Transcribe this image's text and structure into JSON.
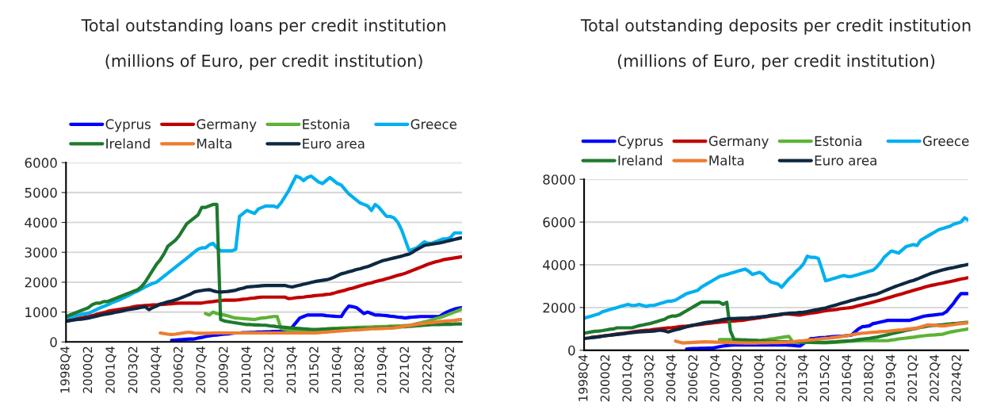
{
  "chart_data": [
    {
      "type": "line",
      "title": "Total outstanding loans per credit institution",
      "subtitle": "(millions of Euro, per credit institution)",
      "categories": [
        "1998Q4",
        null,
        null,
        null,
        null,
        null,
        "2000Q2",
        null,
        null,
        null,
        null,
        null,
        "2001Q4",
        null,
        null,
        null,
        null,
        null,
        "2003Q2",
        null,
        null,
        null,
        null,
        null,
        "2004Q4",
        null,
        null,
        null,
        null,
        null,
        "2006Q2",
        null,
        null,
        null,
        null,
        null,
        "2007Q4",
        null,
        null,
        null,
        null,
        null,
        "2009Q2",
        null,
        null,
        null,
        null,
        null,
        "2010Q4",
        null,
        null,
        null,
        null,
        null,
        "2012Q2",
        null,
        null,
        null,
        null,
        null,
        "2013Q4",
        null,
        null,
        null,
        null,
        null,
        "2015Q2",
        null,
        null,
        null,
        null,
        null,
        "2016Q4",
        null,
        null,
        null,
        null,
        null,
        "2018Q2",
        null,
        null,
        null,
        null,
        null,
        "2019Q4",
        null,
        null,
        null,
        null,
        null,
        "2021Q2",
        null,
        null,
        null,
        null,
        null,
        "2022Q4",
        null,
        null,
        null,
        null,
        null,
        "2024Q2",
        null,
        null,
        null
      ],
      "ylim": [
        0,
        6000
      ],
      "yticks": [
        0,
        1000,
        2000,
        3000,
        4000,
        5000,
        6000
      ],
      "grid": "y",
      "legend": "top",
      "series": [
        {
          "name": "Cyprus",
          "color": "#0000ff",
          "values": [
            null,
            null,
            null,
            null,
            null,
            null,
            null,
            null,
            null,
            null,
            null,
            null,
            null,
            null,
            null,
            null,
            null,
            null,
            null,
            null,
            null,
            null,
            null,
            null,
            null,
            null,
            null,
            null,
            50,
            60,
            70,
            80,
            90,
            100,
            100,
            130,
            150,
            180,
            200,
            220,
            230,
            250,
            260,
            270,
            290,
            300,
            300,
            310,
            310,
            320,
            320,
            330,
            330,
            340,
            340,
            350,
            350,
            350,
            350,
            350,
            500,
            650,
            800,
            850,
            900,
            900,
            900,
            900,
            900,
            880,
            870,
            860,
            850,
            850,
            1050,
            1200,
            1180,
            1150,
            1050,
            950,
            1000,
            950,
            900,
            900,
            890,
            880,
            860,
            850,
            830,
            820,
            800,
            820,
            830,
            840,
            850,
            850,
            850,
            850,
            850,
            850,
            930,
            1000,
            1050,
            1100,
            1130,
            1150
          ]
        },
        {
          "name": "Germany",
          "color": "#c00000",
          "values": [
            700,
            730,
            750,
            780,
            800,
            830,
            850,
            880,
            920,
            950,
            980,
            1020,
            1050,
            1070,
            1090,
            1110,
            1130,
            1150,
            1180,
            1200,
            1210,
            1220,
            1230,
            1240,
            1240,
            1250,
            1260,
            1270,
            1280,
            1290,
            1300,
            1300,
            1300,
            1300,
            1300,
            1300,
            1300,
            1320,
            1340,
            1350,
            1370,
            1380,
            1400,
            1400,
            1400,
            1400,
            1410,
            1430,
            1440,
            1460,
            1470,
            1490,
            1500,
            1500,
            1500,
            1500,
            1500,
            1500,
            1500,
            1450,
            1460,
            1480,
            1490,
            1500,
            1520,
            1530,
            1550,
            1560,
            1570,
            1590,
            1600,
            1630,
            1670,
            1700,
            1730,
            1770,
            1800,
            1840,
            1880,
            1910,
            1950,
            1980,
            2020,
            2050,
            2080,
            2120,
            2150,
            2190,
            2230,
            2260,
            2300,
            2350,
            2400,
            2450,
            2500,
            2550,
            2600,
            2640,
            2680,
            2710,
            2750,
            2770,
            2790,
            2810,
            2830,
            2850
          ]
        },
        {
          "name": "Estonia",
          "color": "#5cb335",
          "values": [
            null,
            null,
            null,
            null,
            null,
            null,
            null,
            null,
            null,
            null,
            null,
            null,
            null,
            null,
            null,
            null,
            null,
            null,
            null,
            null,
            null,
            null,
            null,
            null,
            null,
            null,
            null,
            null,
            null,
            null,
            null,
            null,
            null,
            null,
            null,
            null,
            null,
            950,
            900,
            1000,
            950,
            930,
            900,
            870,
            830,
            800,
            790,
            780,
            770,
            760,
            750,
            780,
            800,
            810,
            830,
            850,
            850,
            450,
            420,
            400,
            400,
            400,
            400,
            400,
            400,
            400,
            400,
            410,
            420,
            440,
            450,
            460,
            460,
            470,
            470,
            480,
            480,
            490,
            490,
            500,
            500,
            500,
            510,
            510,
            520,
            520,
            530,
            530,
            540,
            540,
            550,
            550,
            580,
            610,
            640,
            670,
            700,
            740,
            780,
            810,
            850,
            900,
            950,
            1000,
            1050,
            1100
          ]
        },
        {
          "name": "Greece",
          "color": "#00b0f0",
          "values": [
            800,
            830,
            860,
            890,
            920,
            940,
            960,
            1020,
            1080,
            1140,
            1190,
            1240,
            1300,
            1350,
            1400,
            1460,
            1520,
            1580,
            1650,
            1700,
            1770,
            1840,
            1900,
            1960,
            2000,
            2100,
            2200,
            2300,
            2400,
            2500,
            2600,
            2700,
            2800,
            2900,
            3000,
            3100,
            3150,
            3150,
            3250,
            3300,
            3150,
            3050,
            3050,
            3050,
            3050,
            3100,
            4200,
            4300,
            4400,
            4350,
            4300,
            4450,
            4500,
            4550,
            4550,
            4550,
            4500,
            4650,
            4850,
            5050,
            5300,
            5550,
            5500,
            5400,
            5500,
            5550,
            5450,
            5350,
            5300,
            5400,
            5500,
            5400,
            5300,
            5250,
            5100,
            4950,
            4850,
            4750,
            4650,
            4600,
            4550,
            4400,
            4600,
            4500,
            4350,
            4200,
            4200,
            4150,
            4000,
            3750,
            3400,
            3050,
            3100,
            3150,
            3250,
            3350,
            3300,
            3300,
            3350,
            3400,
            3450,
            3450,
            3500,
            3650,
            3650,
            3650
          ]
        },
        {
          "name": "Ireland",
          "color": "#1e7a2e",
          "values": [
            850,
            900,
            950,
            1000,
            1050,
            1100,
            1150,
            1250,
            1300,
            1300,
            1350,
            1350,
            1400,
            1450,
            1500,
            1550,
            1600,
            1650,
            1700,
            1750,
            1850,
            2000,
            2200,
            2400,
            2600,
            2750,
            2950,
            3200,
            3300,
            3400,
            3550,
            3750,
            3950,
            4050,
            4150,
            4250,
            4500,
            4500,
            4550,
            4600,
            4600,
            750,
            700,
            680,
            660,
            640,
            620,
            600,
            580,
            580,
            570,
            570,
            560,
            560,
            540,
            530,
            510,
            500,
            490,
            480,
            470,
            460,
            450,
            440,
            430,
            420,
            420,
            420,
            430,
            430,
            430,
            430,
            440,
            440,
            440,
            440,
            450,
            450,
            450,
            450,
            450,
            460,
            460,
            470,
            470,
            480,
            490,
            490,
            500,
            510,
            510,
            520,
            530,
            540,
            550,
            560,
            570,
            580,
            580,
            580,
            590,
            590,
            590,
            600,
            600,
            600
          ]
        },
        {
          "name": "Malta",
          "color": "#ed7d31",
          "values": [
            null,
            null,
            null,
            null,
            null,
            null,
            null,
            null,
            null,
            null,
            null,
            null,
            null,
            null,
            null,
            null,
            null,
            null,
            null,
            null,
            null,
            null,
            null,
            null,
            null,
            300,
            280,
            260,
            250,
            260,
            280,
            300,
            320,
            320,
            300,
            290,
            290,
            290,
            290,
            300,
            300,
            300,
            300,
            300,
            300,
            300,
            300,
            300,
            300,
            300,
            300,
            300,
            300,
            300,
            300,
            300,
            300,
            300,
            300,
            300,
            300,
            300,
            300,
            300,
            300,
            300,
            300,
            310,
            320,
            330,
            340,
            350,
            360,
            370,
            380,
            390,
            400,
            400,
            410,
            420,
            430,
            440,
            440,
            450,
            450,
            460,
            460,
            470,
            490,
            510,
            530,
            550,
            570,
            590,
            610,
            620,
            640,
            650,
            660,
            680,
            690,
            700,
            710,
            720,
            740,
            750
          ]
        },
        {
          "name": "Euro area",
          "color": "#0e2841",
          "values": [
            700,
            710,
            730,
            750,
            760,
            780,
            800,
            830,
            860,
            890,
            920,
            940,
            960,
            990,
            1010,
            1040,
            1070,
            1090,
            1110,
            1130,
            1160,
            1180,
            1080,
            1150,
            1200,
            1270,
            1300,
            1340,
            1370,
            1410,
            1450,
            1500,
            1550,
            1600,
            1670,
            1700,
            1720,
            1740,
            1750,
            1710,
            1680,
            1670,
            1680,
            1690,
            1710,
            1730,
            1770,
            1800,
            1840,
            1850,
            1860,
            1870,
            1880,
            1890,
            1890,
            1890,
            1890,
            1890,
            1890,
            1860,
            1840,
            1870,
            1900,
            1930,
            1960,
            1990,
            2020,
            2040,
            2060,
            2080,
            2110,
            2160,
            2220,
            2280,
            2310,
            2350,
            2380,
            2420,
            2450,
            2490,
            2520,
            2570,
            2620,
            2670,
            2720,
            2750,
            2780,
            2810,
            2840,
            2870,
            2910,
            2940,
            3010,
            3090,
            3160,
            3230,
            3250,
            3270,
            3290,
            3310,
            3340,
            3370,
            3400,
            3430,
            3460,
            3490
          ]
        }
      ]
    },
    {
      "type": "line",
      "title": "Total outstanding deposits per credit institution",
      "subtitle": "(millions of Euro, per credit institution)",
      "categories": [
        "1998Q4",
        null,
        null,
        null,
        null,
        null,
        "2000Q2",
        null,
        null,
        null,
        null,
        null,
        "2001Q4",
        null,
        null,
        null,
        null,
        null,
        "2003Q2",
        null,
        null,
        null,
        null,
        null,
        "2004Q4",
        null,
        null,
        null,
        null,
        null,
        "2006Q2",
        null,
        null,
        null,
        null,
        null,
        "2007Q4",
        null,
        null,
        null,
        null,
        null,
        "2009Q2",
        null,
        null,
        null,
        null,
        null,
        "2010Q4",
        null,
        null,
        null,
        null,
        null,
        "2012Q2",
        null,
        null,
        null,
        null,
        null,
        "2013Q4",
        null,
        null,
        null,
        null,
        null,
        "2015Q2",
        null,
        null,
        null,
        null,
        null,
        "2016Q4",
        null,
        null,
        null,
        null,
        null,
        "2018Q2",
        null,
        null,
        null,
        null,
        null,
        "2019Q4",
        null,
        null,
        null,
        null,
        null,
        "2021Q2",
        null,
        null,
        null,
        null,
        null,
        "2022Q4",
        null,
        null,
        null,
        null,
        null,
        "2024Q2",
        null,
        null,
        null
      ],
      "ylim": [
        0,
        8000
      ],
      "yticks": [
        0,
        2000,
        4000,
        6000,
        8000
      ],
      "grid": "y",
      "legend": "top",
      "series": [
        {
          "name": "Cyprus",
          "color": "#0000ff",
          "values": [
            null,
            null,
            null,
            null,
            null,
            null,
            null,
            null,
            null,
            null,
            null,
            null,
            null,
            null,
            null,
            null,
            null,
            null,
            null,
            null,
            null,
            null,
            null,
            null,
            null,
            null,
            null,
            null,
            60,
            70,
            80,
            80,
            90,
            90,
            100,
            100,
            130,
            170,
            200,
            220,
            240,
            250,
            250,
            250,
            250,
            250,
            250,
            250,
            250,
            250,
            250,
            250,
            250,
            250,
            250,
            250,
            240,
            230,
            210,
            200,
            320,
            430,
            550,
            560,
            580,
            590,
            600,
            620,
            640,
            650,
            660,
            670,
            690,
            700,
            850,
            1000,
            1100,
            1120,
            1150,
            1250,
            1280,
            1320,
            1360,
            1400,
            1400,
            1400,
            1400,
            1400,
            1400,
            1400,
            1450,
            1500,
            1550,
            1600,
            1620,
            1640,
            1660,
            1680,
            1700,
            1800,
            2000,
            2200,
            2450,
            2650,
            2650,
            2650
          ]
        },
        {
          "name": "Germany",
          "color": "#c00000",
          "values": [
            null,
            null,
            600,
            620,
            640,
            660,
            690,
            710,
            730,
            760,
            780,
            800,
            830,
            850,
            880,
            900,
            920,
            940,
            950,
            970,
            990,
            1010,
            1030,
            1050,
            1060,
            1080,
            1100,
            1120,
            1130,
            1150,
            1170,
            1190,
            1210,
            1240,
            1260,
            1280,
            1300,
            1310,
            1330,
            1340,
            1360,
            1370,
            1390,
            1400,
            1420,
            1450,
            1470,
            1500,
            1520,
            1550,
            1570,
            1600,
            1620,
            1650,
            1670,
            1700,
            1690,
            1680,
            1660,
            1650,
            1680,
            1710,
            1740,
            1760,
            1790,
            1820,
            1850,
            1870,
            1890,
            1910,
            1940,
            1960,
            1980,
            2000,
            2040,
            2090,
            2130,
            2170,
            2210,
            2260,
            2300,
            2350,
            2400,
            2450,
            2500,
            2550,
            2600,
            2650,
            2700,
            2750,
            2800,
            2850,
            2900,
            2950,
            3000,
            3040,
            3070,
            3110,
            3140,
            3180,
            3210,
            3250,
            3290,
            3330,
            3360,
            3400
          ]
        },
        {
          "name": "Estonia",
          "color": "#5cb335",
          "values": [
            null,
            null,
            null,
            null,
            null,
            null,
            null,
            null,
            null,
            null,
            null,
            null,
            null,
            null,
            null,
            null,
            null,
            null,
            null,
            null,
            null,
            null,
            null,
            null,
            null,
            null,
            null,
            null,
            null,
            null,
            null,
            null,
            null,
            null,
            null,
            null,
            null,
            500,
            500,
            500,
            500,
            500,
            490,
            480,
            480,
            470,
            460,
            460,
            450,
            480,
            500,
            530,
            550,
            580,
            600,
            630,
            650,
            400,
            390,
            380,
            380,
            370,
            370,
            360,
            360,
            350,
            350,
            360,
            370,
            380,
            390,
            400,
            410,
            420,
            430,
            440,
            450,
            450,
            450,
            450,
            450,
            450,
            450,
            450,
            480,
            500,
            530,
            550,
            570,
            590,
            610,
            640,
            660,
            680,
            700,
            710,
            720,
            740,
            750,
            800,
            850,
            880,
            910,
            940,
            970,
            1000
          ]
        },
        {
          "name": "Greece",
          "color": "#00b0f0",
          "values": [
            1500,
            1550,
            1600,
            1650,
            1700,
            1800,
            1850,
            1900,
            1950,
            2000,
            2050,
            2100,
            2150,
            2100,
            2100,
            2150,
            2100,
            2050,
            2100,
            2100,
            2150,
            2200,
            2250,
            2300,
            2300,
            2350,
            2450,
            2550,
            2650,
            2700,
            2750,
            2800,
            2950,
            3050,
            3150,
            3250,
            3350,
            3450,
            3500,
            3550,
            3600,
            3650,
            3700,
            3750,
            3800,
            3700,
            3550,
            3600,
            3650,
            3550,
            3350,
            3200,
            3150,
            3100,
            2950,
            3150,
            3350,
            3500,
            3700,
            3850,
            4050,
            4400,
            4350,
            4350,
            4300,
            3800,
            3250,
            3300,
            3350,
            3400,
            3450,
            3500,
            3450,
            3450,
            3500,
            3550,
            3600,
            3650,
            3700,
            3750,
            3900,
            4100,
            4350,
            4500,
            4650,
            4600,
            4550,
            4700,
            4850,
            4900,
            4950,
            4900,
            5150,
            5250,
            5350,
            5450,
            5550,
            5650,
            5700,
            5750,
            5800,
            5900,
            5950,
            6000,
            6200,
            6100
          ]
        },
        {
          "name": "Ireland",
          "color": "#1e7a2e",
          "values": [
            800,
            830,
            860,
            890,
            900,
            920,
            950,
            980,
            1000,
            1050,
            1050,
            1050,
            1050,
            1050,
            1100,
            1150,
            1180,
            1220,
            1250,
            1300,
            1350,
            1400,
            1450,
            1550,
            1600,
            1600,
            1650,
            1750,
            1850,
            1950,
            2050,
            2150,
            2250,
            2250,
            2250,
            2250,
            2250,
            2250,
            2150,
            2250,
            900,
            500,
            490,
            480,
            480,
            470,
            460,
            460,
            450,
            440,
            430,
            420,
            420,
            410,
            400,
            400,
            400,
            390,
            390,
            390,
            380,
            380,
            380,
            370,
            370,
            370,
            370,
            380,
            390,
            400,
            420,
            430,
            440,
            450,
            470,
            500,
            520,
            540,
            560,
            590,
            610,
            650,
            690,
            730,
            770,
            810,
            850,
            890,
            930,
            960,
            1000,
            1030,
            1070,
            1100,
            1140,
            1160,
            1170,
            1190,
            1200,
            1220,
            1230,
            1250,
            1260,
            1280,
            1300,
            1310
          ]
        },
        {
          "name": "Malta",
          "color": "#ed7d31",
          "values": [
            null,
            null,
            null,
            null,
            null,
            null,
            null,
            null,
            null,
            null,
            null,
            null,
            null,
            null,
            null,
            null,
            null,
            null,
            null,
            null,
            null,
            null,
            null,
            null,
            null,
            430,
            380,
            340,
            350,
            360,
            370,
            380,
            390,
            400,
            390,
            390,
            380,
            380,
            370,
            370,
            360,
            360,
            350,
            350,
            340,
            340,
            340,
            340,
            350,
            350,
            350,
            360,
            360,
            360,
            370,
            370,
            390,
            400,
            420,
            440,
            450,
            470,
            490,
            500,
            520,
            540,
            560,
            570,
            590,
            610,
            640,
            660,
            690,
            720,
            750,
            780,
            800,
            810,
            830,
            840,
            850,
            870,
            880,
            890,
            910,
            930,
            950,
            960,
            980,
            1000,
            1020,
            1040,
            1090,
            1140,
            1190,
            1180,
            1170,
            1150,
            1140,
            1160,
            1180,
            1200,
            1230,
            1250,
            1270,
            1290
          ]
        },
        {
          "name": "Euro area",
          "color": "#0e2841",
          "values": [
            550,
            570,
            590,
            610,
            630,
            660,
            680,
            700,
            720,
            740,
            760,
            780,
            800,
            820,
            840,
            860,
            870,
            880,
            890,
            900,
            920,
            940,
            900,
            860,
            910,
            960,
            1000,
            1050,
            1100,
            1140,
            1180,
            1220,
            1250,
            1290,
            1320,
            1340,
            1370,
            1400,
            1440,
            1470,
            1480,
            1480,
            1490,
            1500,
            1500,
            1510,
            1530,
            1540,
            1560,
            1580,
            1600,
            1630,
            1650,
            1670,
            1700,
            1720,
            1730,
            1740,
            1750,
            1770,
            1780,
            1810,
            1850,
            1880,
            1910,
            1950,
            1980,
            2030,
            2080,
            2130,
            2180,
            2230,
            2280,
            2330,
            2370,
            2420,
            2460,
            2500,
            2550,
            2590,
            2630,
            2700,
            2770,
            2840,
            2910,
            2980,
            3040,
            3100,
            3160,
            3220,
            3270,
            3330,
            3400,
            3470,
            3540,
            3610,
            3660,
            3710,
            3760,
            3800,
            3840,
            3870,
            3910,
            3950,
            3980,
            4020
          ]
        }
      ]
    }
  ]
}
